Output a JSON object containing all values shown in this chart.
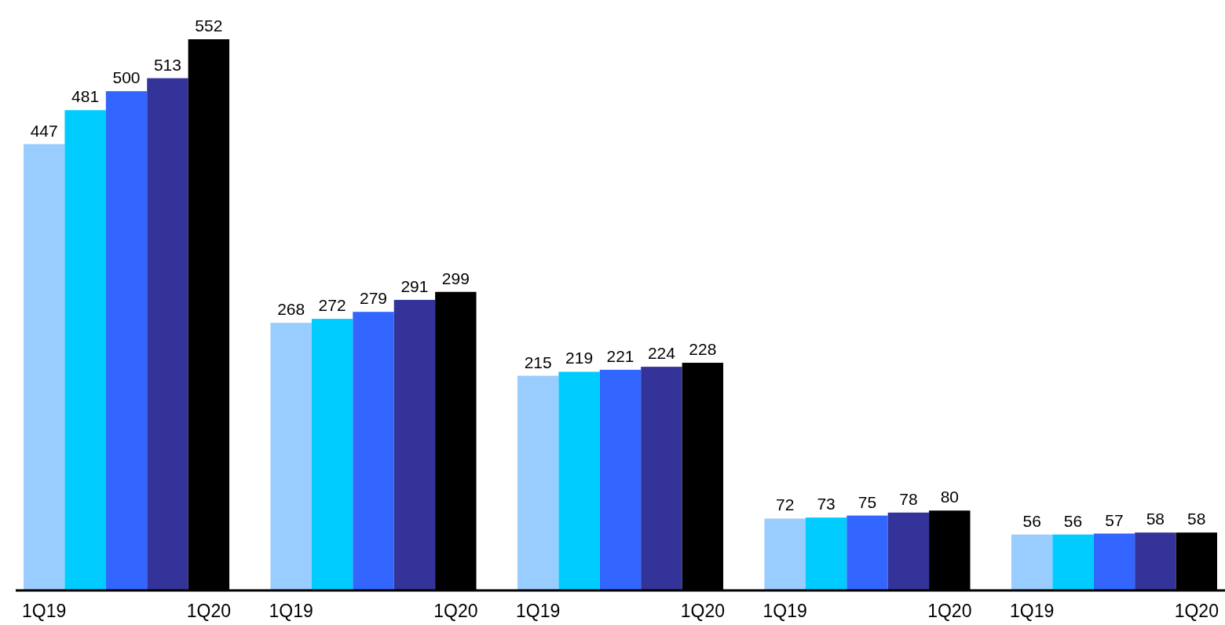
{
  "chart_data": {
    "type": "bar",
    "categories": [
      "1Q19",
      null,
      null,
      null,
      "1Q20",
      null,
      "1Q19",
      null,
      null,
      null,
      "1Q20",
      null,
      "1Q19",
      null,
      null,
      null,
      "1Q20",
      null,
      "1Q19",
      null,
      null,
      null,
      "1Q20",
      null,
      "1Q19",
      null,
      null,
      null,
      "1Q20"
    ],
    "values": [
      447,
      481,
      500,
      513,
      552,
      null,
      268,
      272,
      279,
      291,
      299,
      null,
      215,
      219,
      221,
      224,
      228,
      null,
      72,
      73,
      75,
      78,
      80,
      null,
      56,
      56,
      57,
      58,
      58
    ],
    "colors": [
      "#99ccff",
      "#00ccff",
      "#3366ff",
      "#333399",
      "#000000",
      null,
      "#99ccff",
      "#00ccff",
      "#3366ff",
      "#333399",
      "#000000",
      null,
      "#99ccff",
      "#00ccff",
      "#3366ff",
      "#333399",
      "#000000",
      null,
      "#99ccff",
      "#00ccff",
      "#3366ff",
      "#333399",
      "#000000",
      null,
      "#99ccff",
      "#00ccff",
      "#3366ff",
      "#333399",
      "#000000"
    ],
    "data_labels": true
  }
}
